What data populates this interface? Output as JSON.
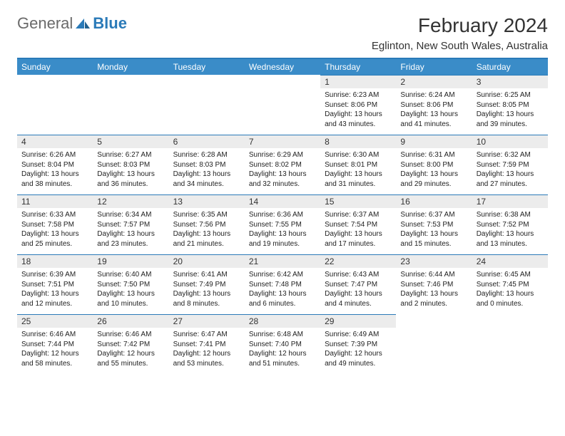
{
  "brand": {
    "name_a": "General",
    "name_b": "Blue"
  },
  "title": "February 2024",
  "location": "Eglinton, New South Wales, Australia",
  "colors": {
    "header_bg": "#3a8cc8",
    "header_border": "#2a7ab8",
    "daynum_bg": "#ececec",
    "text": "#222222"
  },
  "weekdays": [
    "Sunday",
    "Monday",
    "Tuesday",
    "Wednesday",
    "Thursday",
    "Friday",
    "Saturday"
  ],
  "weeks": [
    [
      null,
      null,
      null,
      null,
      {
        "n": "1",
        "sr": "Sunrise: 6:23 AM",
        "ss": "Sunset: 8:06 PM",
        "d1": "Daylight: 13 hours",
        "d2": "and 43 minutes."
      },
      {
        "n": "2",
        "sr": "Sunrise: 6:24 AM",
        "ss": "Sunset: 8:06 PM",
        "d1": "Daylight: 13 hours",
        "d2": "and 41 minutes."
      },
      {
        "n": "3",
        "sr": "Sunrise: 6:25 AM",
        "ss": "Sunset: 8:05 PM",
        "d1": "Daylight: 13 hours",
        "d2": "and 39 minutes."
      }
    ],
    [
      {
        "n": "4",
        "sr": "Sunrise: 6:26 AM",
        "ss": "Sunset: 8:04 PM",
        "d1": "Daylight: 13 hours",
        "d2": "and 38 minutes."
      },
      {
        "n": "5",
        "sr": "Sunrise: 6:27 AM",
        "ss": "Sunset: 8:03 PM",
        "d1": "Daylight: 13 hours",
        "d2": "and 36 minutes."
      },
      {
        "n": "6",
        "sr": "Sunrise: 6:28 AM",
        "ss": "Sunset: 8:03 PM",
        "d1": "Daylight: 13 hours",
        "d2": "and 34 minutes."
      },
      {
        "n": "7",
        "sr": "Sunrise: 6:29 AM",
        "ss": "Sunset: 8:02 PM",
        "d1": "Daylight: 13 hours",
        "d2": "and 32 minutes."
      },
      {
        "n": "8",
        "sr": "Sunrise: 6:30 AM",
        "ss": "Sunset: 8:01 PM",
        "d1": "Daylight: 13 hours",
        "d2": "and 31 minutes."
      },
      {
        "n": "9",
        "sr": "Sunrise: 6:31 AM",
        "ss": "Sunset: 8:00 PM",
        "d1": "Daylight: 13 hours",
        "d2": "and 29 minutes."
      },
      {
        "n": "10",
        "sr": "Sunrise: 6:32 AM",
        "ss": "Sunset: 7:59 PM",
        "d1": "Daylight: 13 hours",
        "d2": "and 27 minutes."
      }
    ],
    [
      {
        "n": "11",
        "sr": "Sunrise: 6:33 AM",
        "ss": "Sunset: 7:58 PM",
        "d1": "Daylight: 13 hours",
        "d2": "and 25 minutes."
      },
      {
        "n": "12",
        "sr": "Sunrise: 6:34 AM",
        "ss": "Sunset: 7:57 PM",
        "d1": "Daylight: 13 hours",
        "d2": "and 23 minutes."
      },
      {
        "n": "13",
        "sr": "Sunrise: 6:35 AM",
        "ss": "Sunset: 7:56 PM",
        "d1": "Daylight: 13 hours",
        "d2": "and 21 minutes."
      },
      {
        "n": "14",
        "sr": "Sunrise: 6:36 AM",
        "ss": "Sunset: 7:55 PM",
        "d1": "Daylight: 13 hours",
        "d2": "and 19 minutes."
      },
      {
        "n": "15",
        "sr": "Sunrise: 6:37 AM",
        "ss": "Sunset: 7:54 PM",
        "d1": "Daylight: 13 hours",
        "d2": "and 17 minutes."
      },
      {
        "n": "16",
        "sr": "Sunrise: 6:37 AM",
        "ss": "Sunset: 7:53 PM",
        "d1": "Daylight: 13 hours",
        "d2": "and 15 minutes."
      },
      {
        "n": "17",
        "sr": "Sunrise: 6:38 AM",
        "ss": "Sunset: 7:52 PM",
        "d1": "Daylight: 13 hours",
        "d2": "and 13 minutes."
      }
    ],
    [
      {
        "n": "18",
        "sr": "Sunrise: 6:39 AM",
        "ss": "Sunset: 7:51 PM",
        "d1": "Daylight: 13 hours",
        "d2": "and 12 minutes."
      },
      {
        "n": "19",
        "sr": "Sunrise: 6:40 AM",
        "ss": "Sunset: 7:50 PM",
        "d1": "Daylight: 13 hours",
        "d2": "and 10 minutes."
      },
      {
        "n": "20",
        "sr": "Sunrise: 6:41 AM",
        "ss": "Sunset: 7:49 PM",
        "d1": "Daylight: 13 hours",
        "d2": "and 8 minutes."
      },
      {
        "n": "21",
        "sr": "Sunrise: 6:42 AM",
        "ss": "Sunset: 7:48 PM",
        "d1": "Daylight: 13 hours",
        "d2": "and 6 minutes."
      },
      {
        "n": "22",
        "sr": "Sunrise: 6:43 AM",
        "ss": "Sunset: 7:47 PM",
        "d1": "Daylight: 13 hours",
        "d2": "and 4 minutes."
      },
      {
        "n": "23",
        "sr": "Sunrise: 6:44 AM",
        "ss": "Sunset: 7:46 PM",
        "d1": "Daylight: 13 hours",
        "d2": "and 2 minutes."
      },
      {
        "n": "24",
        "sr": "Sunrise: 6:45 AM",
        "ss": "Sunset: 7:45 PM",
        "d1": "Daylight: 13 hours",
        "d2": "and 0 minutes."
      }
    ],
    [
      {
        "n": "25",
        "sr": "Sunrise: 6:46 AM",
        "ss": "Sunset: 7:44 PM",
        "d1": "Daylight: 12 hours",
        "d2": "and 58 minutes."
      },
      {
        "n": "26",
        "sr": "Sunrise: 6:46 AM",
        "ss": "Sunset: 7:42 PM",
        "d1": "Daylight: 12 hours",
        "d2": "and 55 minutes."
      },
      {
        "n": "27",
        "sr": "Sunrise: 6:47 AM",
        "ss": "Sunset: 7:41 PM",
        "d1": "Daylight: 12 hours",
        "d2": "and 53 minutes."
      },
      {
        "n": "28",
        "sr": "Sunrise: 6:48 AM",
        "ss": "Sunset: 7:40 PM",
        "d1": "Daylight: 12 hours",
        "d2": "and 51 minutes."
      },
      {
        "n": "29",
        "sr": "Sunrise: 6:49 AM",
        "ss": "Sunset: 7:39 PM",
        "d1": "Daylight: 12 hours",
        "d2": "and 49 minutes."
      },
      null,
      null
    ]
  ]
}
